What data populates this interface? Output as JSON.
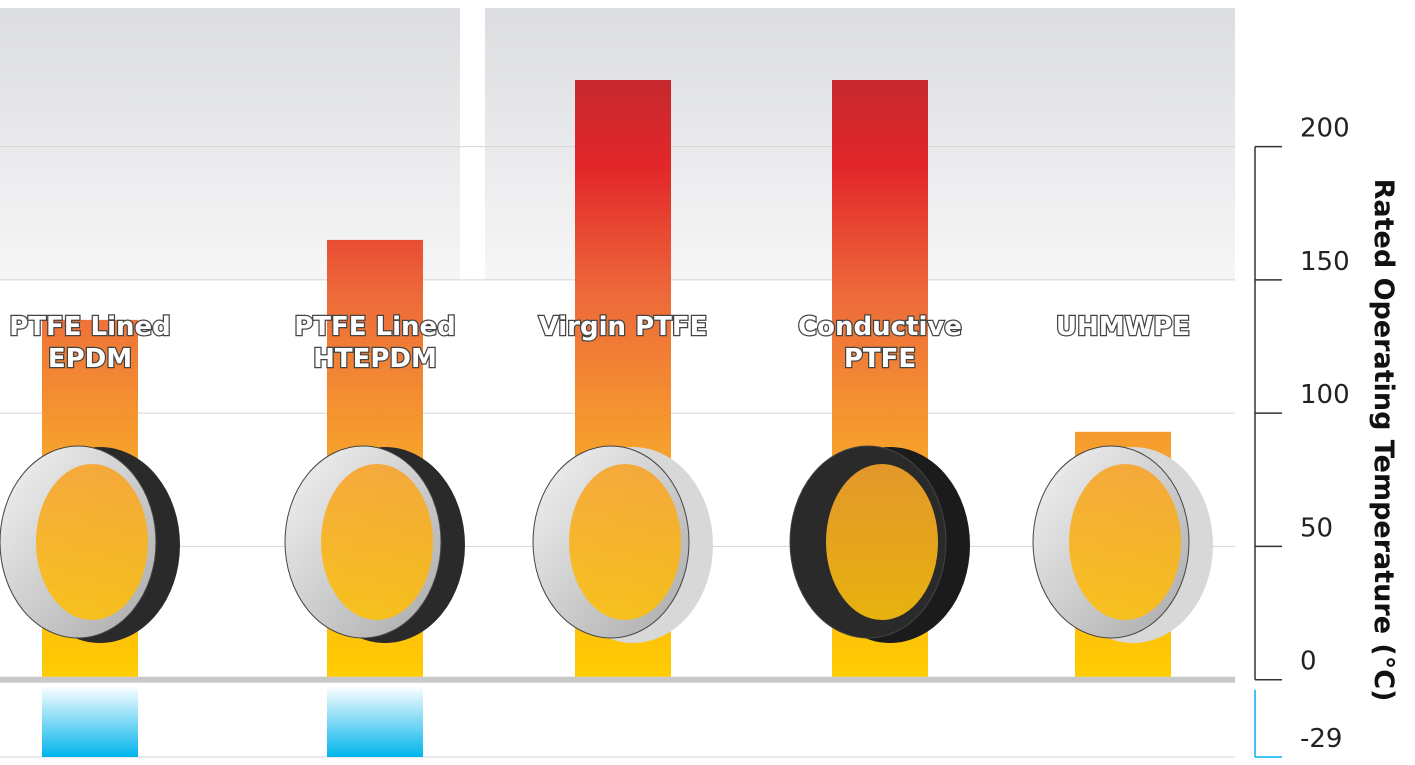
{
  "chart_data": {
    "type": "floating-bar",
    "y_label": "Rated Operating Temperature (°C)",
    "categories": [
      [
        "PTFE Lined",
        "EPDM"
      ],
      [
        "PTFE Lined",
        "HTEPDM"
      ],
      [
        "Virgin PTFE"
      ],
      [
        "Conductive",
        "PTFE"
      ],
      [
        "UHMWPE"
      ]
    ],
    "low": [
      -29,
      -29,
      0,
      0,
      0
    ],
    "high": [
      135,
      165,
      225,
      225,
      93
    ],
    "ylim": [
      -29,
      240
    ],
    "yticks": [
      -29,
      0,
      50,
      100,
      150,
      200
    ],
    "grid": true
  }
}
